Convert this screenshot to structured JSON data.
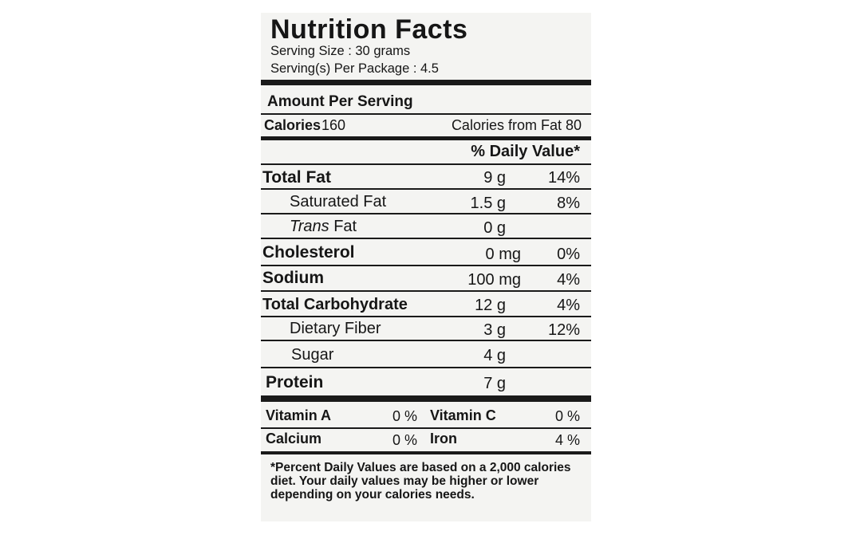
{
  "label": {
    "title": "Nutrition Facts",
    "serving_size": "Serving Size : 30 grams",
    "servings_per_package": "Serving(s) Per Package : 4.5",
    "amount_per_serving": "Amount Per Serving",
    "calories_label": "Calories",
    "calories_value": "160",
    "calories_from_fat": "Calories from Fat  80",
    "daily_value_header": "% Daily Value*",
    "nutrients": [
      {
        "name": "Total Fat",
        "amount": "9 g",
        "dv": "14%"
      },
      {
        "name": "Saturated Fat",
        "amount": "1.5 g",
        "dv": "8%"
      },
      {
        "name_italic": "Trans",
        "name_rest": " Fat",
        "amount": "0 g",
        "dv": ""
      },
      {
        "name": "Cholesterol",
        "amount": "0 mg",
        "dv": "0%"
      },
      {
        "name": "Sodium",
        "amount": "100 mg",
        "dv": "4%"
      },
      {
        "name": "Total Carbohydrate",
        "amount": "12 g",
        "dv": "4%"
      },
      {
        "name": "Dietary Fiber",
        "amount": "3 g",
        "dv": "12%"
      },
      {
        "name": "Sugar",
        "amount": "4 g",
        "dv": ""
      },
      {
        "name": "Protein",
        "amount": "7 g",
        "dv": ""
      }
    ],
    "vitamins": [
      {
        "name": "Vitamin A",
        "dv": "0 %"
      },
      {
        "name": "Vitamin C",
        "dv": "0 %"
      },
      {
        "name": "Calcium",
        "dv": "0 %"
      },
      {
        "name": "Iron",
        "dv": "4 %"
      }
    ],
    "footnote": "*Percent Daily Values are based on a 2,000 calories diet. Your daily values may be higher or lower depending on your calories needs."
  }
}
